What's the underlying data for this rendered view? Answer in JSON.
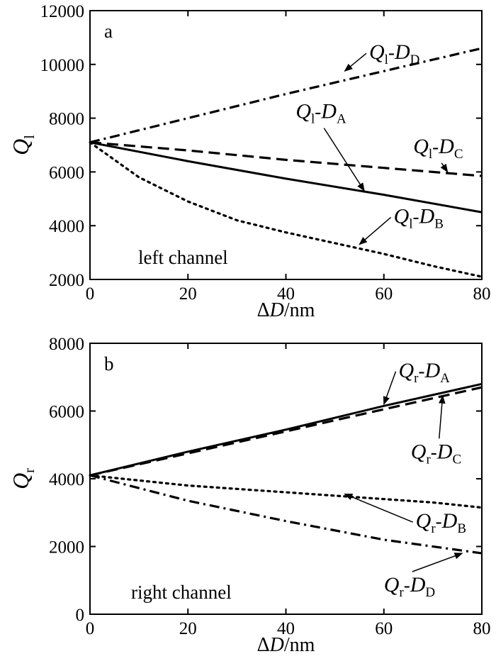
{
  "figure": {
    "x_unit_label": "ΔD/nm"
  },
  "chart_data": [
    {
      "type": "line",
      "panel_label": "a",
      "annotation": "left channel",
      "ylabel_main": "Q",
      "ylabel_sub": "l",
      "xlabel": "ΔD/nm",
      "xlim": [
        0,
        80
      ],
      "ylim": [
        2000,
        12000
      ],
      "xticks": [
        0,
        20,
        40,
        60,
        80
      ],
      "yticks": [
        2000,
        4000,
        6000,
        8000,
        10000,
        12000
      ],
      "grid": false,
      "series": [
        {
          "name_main": "Q",
          "name_sub": "l",
          "name_sep": "-",
          "name_d": "D",
          "name_dsub": "A",
          "style": "solid",
          "x": [
            0,
            20,
            40,
            60,
            80
          ],
          "y": [
            7100,
            6400,
            5750,
            5150,
            4500
          ]
        },
        {
          "name_main": "Q",
          "name_sub": "l",
          "name_sep": "-",
          "name_d": "D",
          "name_dsub": "B",
          "style": "dotted",
          "x": [
            0,
            10,
            20,
            30,
            40,
            50,
            60,
            70,
            80
          ],
          "y": [
            7100,
            5800,
            4900,
            4200,
            3750,
            3350,
            2950,
            2500,
            2100
          ]
        },
        {
          "name_main": "Q",
          "name_sub": "l",
          "name_sep": "-",
          "name_d": "D",
          "name_dsub": "C",
          "style": "dashed",
          "x": [
            0,
            20,
            40,
            60,
            80
          ],
          "y": [
            7100,
            6800,
            6450,
            6150,
            5850
          ]
        },
        {
          "name_main": "Q",
          "name_sub": "l",
          "name_sep": "-",
          "name_d": "D",
          "name_dsub": "D",
          "style": "dashdot",
          "x": [
            0,
            20,
            40,
            60,
            80
          ],
          "y": [
            7100,
            8000,
            8900,
            9750,
            10600
          ]
        }
      ],
      "labels": [
        {
          "series": 3,
          "tx": 57,
          "ty": 10200,
          "ax": 52,
          "ay": 9750
        },
        {
          "series": 2,
          "tx": 66,
          "ty": 6700,
          "ax": 73,
          "ay": 6000
        },
        {
          "series": 0,
          "tx": 42,
          "ty": 8000,
          "ax": 56,
          "ay": 5300
        },
        {
          "series": 1,
          "tx": 62,
          "ty": 4100,
          "ax": 55,
          "ay": 3300
        }
      ]
    },
    {
      "type": "line",
      "panel_label": "b",
      "annotation": "right channel",
      "ylabel_main": "Q",
      "ylabel_sub": "r",
      "xlabel": "ΔD/nm",
      "xlim": [
        0,
        80
      ],
      "ylim": [
        0,
        8000
      ],
      "xticks": [
        0,
        20,
        40,
        60,
        80
      ],
      "yticks": [
        0,
        2000,
        4000,
        6000,
        8000
      ],
      "grid": false,
      "series": [
        {
          "name_main": "Q",
          "name_sub": "r",
          "name_sep": "-",
          "name_d": "D",
          "name_dsub": "A",
          "style": "solid",
          "x": [
            0,
            20,
            40,
            60,
            80
          ],
          "y": [
            4100,
            4800,
            5450,
            6150,
            6800
          ]
        },
        {
          "name_main": "Q",
          "name_sub": "r",
          "name_sep": "-",
          "name_d": "D",
          "name_dsub": "B",
          "style": "dotted",
          "x": [
            0,
            10,
            20,
            30,
            40,
            50,
            60,
            70,
            80
          ],
          "y": [
            4100,
            3950,
            3800,
            3700,
            3600,
            3500,
            3400,
            3300,
            3150
          ]
        },
        {
          "name_main": "Q",
          "name_sub": "r",
          "name_sep": "-",
          "name_d": "D",
          "name_dsub": "C",
          "style": "dashed",
          "x": [
            0,
            20,
            40,
            60,
            80
          ],
          "y": [
            4100,
            4750,
            5400,
            6050,
            6700
          ]
        },
        {
          "name_main": "Q",
          "name_sub": "r",
          "name_sep": "-",
          "name_d": "D",
          "name_dsub": "D",
          "style": "dashdot",
          "x": [
            0,
            20,
            40,
            60,
            80
          ],
          "y": [
            4100,
            3350,
            2750,
            2200,
            1800
          ]
        }
      ],
      "labels": [
        {
          "series": 0,
          "tx": 63,
          "ty": 7000,
          "ax": 60,
          "ay": 6200
        },
        {
          "series": 2,
          "tx": 65.5,
          "ty": 4600,
          "ax": 72,
          "ay": 6450
        },
        {
          "series": 1,
          "tx": 66.5,
          "ty": 2550,
          "ax": 52,
          "ay": 3550
        },
        {
          "series": 3,
          "tx": 60,
          "ty": 670,
          "ax": 76,
          "ay": 1800
        }
      ]
    }
  ]
}
